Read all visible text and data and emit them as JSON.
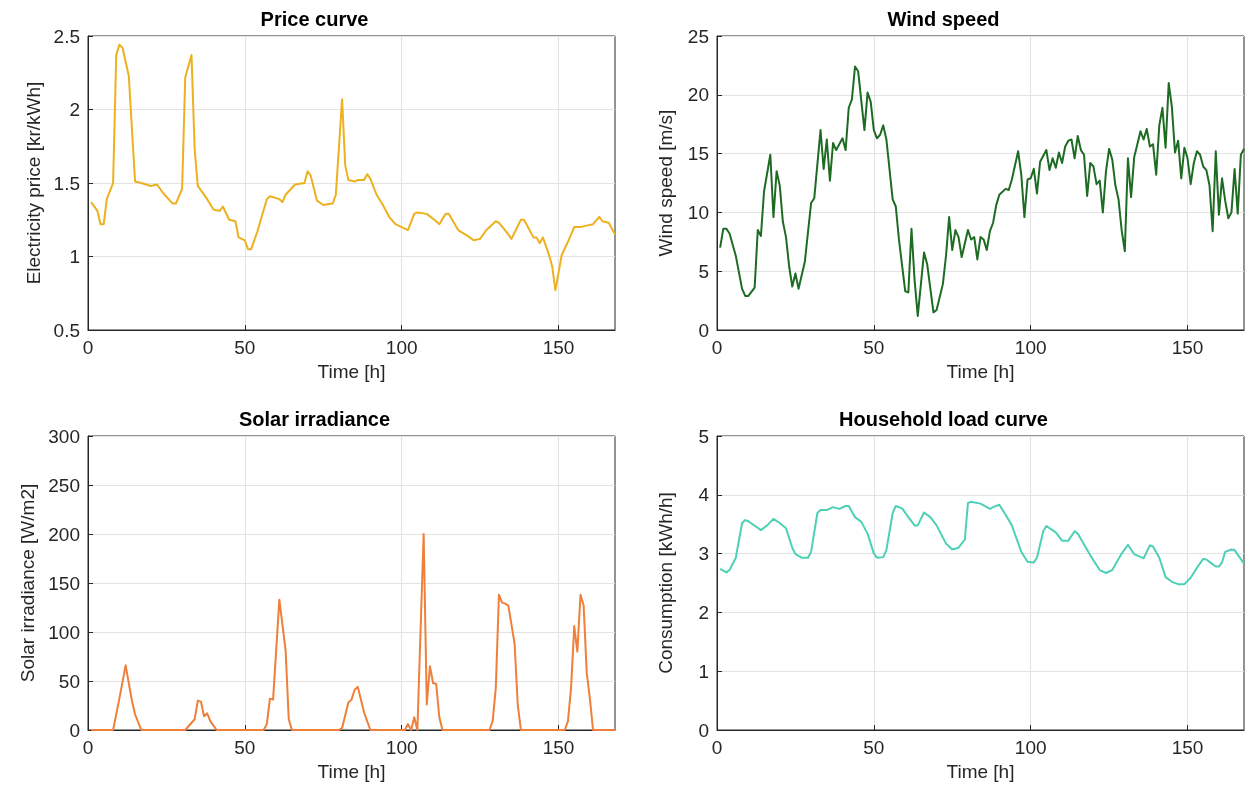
{
  "chart_data": [
    {
      "type": "line",
      "title": "Price curve",
      "xlabel": "Time [h]",
      "ylabel": "Electricity price [kr/kWh]",
      "color": "#edb120",
      "grid": true,
      "xlim": [
        0,
        168
      ],
      "xticks": [
        0,
        50,
        100,
        150
      ],
      "ylim": [
        0.5,
        2.5
      ],
      "yticks": [
        0.5,
        1,
        1.5,
        2,
        2.5
      ],
      "x": [
        1,
        3,
        4,
        5,
        6,
        8,
        9,
        10,
        11,
        13,
        15,
        17,
        20,
        22,
        24,
        27,
        28,
        30,
        31,
        33,
        34,
        35,
        38,
        40,
        42,
        43,
        45,
        47,
        48,
        50,
        51,
        52,
        54,
        57,
        58,
        61,
        62,
        63,
        66,
        69,
        70,
        71,
        73,
        75,
        78,
        79,
        81,
        82,
        83,
        85,
        86,
        88,
        89,
        90,
        92,
        94,
        96,
        98,
        100,
        102,
        104,
        105,
        108,
        111,
        112,
        114,
        115,
        118,
        121,
        123,
        125,
        127,
        130,
        131,
        134,
        135,
        138,
        139,
        142,
        143,
        144,
        145,
        147,
        148,
        149,
        151,
        153,
        155,
        157,
        159,
        161,
        163,
        164,
        166,
        168
      ],
      "values": [
        1.37,
        1.31,
        1.22,
        1.22,
        1.39,
        1.5,
        2.37,
        2.44,
        2.42,
        2.23,
        1.51,
        1.5,
        1.48,
        1.49,
        1.43,
        1.36,
        1.36,
        1.46,
        2.22,
        2.37,
        1.73,
        1.48,
        1.39,
        1.32,
        1.31,
        1.34,
        1.25,
        1.24,
        1.13,
        1.11,
        1.05,
        1.05,
        1.17,
        1.39,
        1.41,
        1.39,
        1.37,
        1.42,
        1.49,
        1.5,
        1.58,
        1.55,
        1.38,
        1.35,
        1.36,
        1.42,
        2.07,
        1.62,
        1.52,
        1.51,
        1.52,
        1.52,
        1.56,
        1.53,
        1.42,
        1.35,
        1.27,
        1.22,
        1.2,
        1.18,
        1.29,
        1.3,
        1.29,
        1.24,
        1.22,
        1.29,
        1.29,
        1.18,
        1.14,
        1.11,
        1.12,
        1.18,
        1.24,
        1.23,
        1.15,
        1.12,
        1.25,
        1.25,
        1.13,
        1.13,
        1.09,
        1.13,
        1.01,
        0.93,
        0.77,
        1.01,
        1.1,
        1.2,
        1.2,
        1.21,
        1.22,
        1.27,
        1.24,
        1.23,
        1.15
      ]
    },
    {
      "type": "line",
      "title": "Wind speed",
      "xlabel": "Time [h]",
      "ylabel": "Wind speed [m/s]",
      "color": "#1e6b24",
      "grid": true,
      "xlim": [
        0,
        168
      ],
      "xticks": [
        0,
        50,
        100,
        150
      ],
      "ylim": [
        0,
        25
      ],
      "yticks": [
        0,
        5,
        10,
        15,
        20,
        25
      ],
      "x": [
        1,
        2,
        3,
        4,
        6,
        8,
        9,
        10,
        12,
        13,
        14,
        15,
        17,
        18,
        19,
        20,
        21,
        22,
        23,
        24,
        25,
        26,
        28,
        30,
        31,
        33,
        34,
        35,
        36,
        37,
        38,
        40,
        41,
        42,
        43,
        44,
        45,
        47,
        48,
        49,
        50,
        51,
        52,
        53,
        54,
        56,
        57,
        58,
        60,
        61,
        62,
        63,
        64,
        66,
        67,
        69,
        70,
        72,
        73,
        74,
        75,
        76,
        77,
        78,
        80,
        81,
        82,
        83,
        84,
        85,
        86,
        87,
        88,
        89,
        90,
        92,
        93,
        94,
        96,
        97,
        98,
        99,
        100,
        101,
        102,
        103,
        105,
        106,
        107,
        108,
        109,
        110,
        111,
        112,
        113,
        114,
        115,
        116,
        117,
        118,
        119,
        120,
        121,
        122,
        123,
        124,
        125,
        126,
        127,
        128,
        129,
        130,
        131,
        132,
        133,
        134,
        135,
        136,
        137,
        138,
        139,
        140,
        141,
        142,
        143,
        144,
        145,
        146,
        147,
        148,
        149,
        150,
        151,
        152,
        153,
        154,
        155,
        156,
        157,
        158,
        159,
        160,
        161,
        162,
        163,
        164,
        165,
        166,
        167,
        168
      ],
      "values": [
        7.0,
        8.6,
        8.6,
        8.2,
        6.3,
        3.5,
        2.9,
        2.9,
        3.6,
        8.5,
        8.0,
        11.8,
        14.9,
        9.6,
        13.5,
        12.3,
        9.2,
        7.9,
        5.4,
        3.7,
        4.8,
        3.5,
        5.8,
        10.8,
        11.2,
        17.0,
        13.7,
        16.2,
        12.7,
        15.9,
        15.3,
        16.3,
        15.3,
        18.9,
        19.6,
        22.4,
        22.0,
        17.0,
        20.2,
        19.4,
        17.0,
        16.3,
        16.6,
        17.4,
        16.2,
        11.1,
        10.5,
        7.7,
        3.3,
        3.2,
        8.6,
        4.2,
        1.2,
        6.6,
        5.6,
        1.5,
        1.7,
        3.9,
        6.3,
        9.6,
        6.8,
        8.5,
        7.9,
        6.2,
        8.5,
        7.7,
        7.9,
        6.0,
        7.9,
        7.7,
        6.8,
        8.4,
        9.1,
        10.6,
        11.5,
        12.0,
        11.9,
        12.8,
        15.2,
        13.2,
        9.6,
        12.8,
        12.9,
        13.7,
        11.6,
        14.3,
        15.3,
        13.6,
        14.6,
        13.8,
        15.1,
        14.2,
        15.6,
        16.1,
        16.2,
        14.6,
        16.5,
        15.3,
        14.9,
        11.4,
        14.2,
        13.9,
        12.4,
        12.7,
        10.0,
        13.5,
        15.4,
        14.5,
        12.3,
        11.1,
        8.5,
        6.7,
        14.6,
        11.3,
        14.7,
        15.8,
        16.9,
        16.2,
        17.1,
        15.6,
        15.8,
        13.2,
        17.4,
        18.9,
        15.5,
        21.0,
        19.0,
        15.1,
        16.1,
        12.9,
        15.5,
        14.6,
        12.4,
        14.2,
        15.2,
        14.9,
        13.9,
        13.6,
        12.3,
        8.4,
        15.2,
        9.8,
        12.9,
        11.0,
        9.5,
        10.0,
        13.7,
        9.9,
        14.9,
        15.4
      ]
    },
    {
      "type": "line",
      "title": "Solar irradiance",
      "xlabel": "Time [h]",
      "ylabel": "Solar irradiance [W/m2]",
      "color": "#ef7f3a",
      "grid": true,
      "xlim": [
        0,
        168
      ],
      "xticks": [
        0,
        50,
        100,
        150
      ],
      "ylim": [
        0,
        300
      ],
      "yticks": [
        0,
        50,
        100,
        150,
        200,
        250,
        300
      ],
      "x": [
        1,
        8,
        10,
        12,
        14,
        15,
        17,
        31,
        34,
        35,
        36,
        37,
        38,
        39,
        41,
        56,
        57,
        58,
        59,
        61,
        63,
        64,
        65,
        80,
        81,
        83,
        84,
        85,
        86,
        88,
        90,
        101,
        102,
        103,
        104,
        105,
        107,
        108,
        109,
        110,
        111,
        112,
        113,
        128,
        129,
        130,
        131,
        132,
        133,
        134,
        136,
        137,
        138,
        152,
        153,
        154,
        155,
        156,
        157,
        158,
        159,
        160,
        161,
        168
      ],
      "values": [
        0,
        0,
        32,
        66,
        30,
        16,
        0,
        0,
        11,
        30,
        29,
        14,
        17,
        9,
        0,
        0,
        6,
        32,
        31,
        133,
        81,
        11,
        0,
        0,
        2,
        28,
        31,
        41,
        44,
        18,
        0,
        0,
        6,
        0,
        13,
        0,
        200,
        26,
        65,
        48,
        47,
        13,
        0,
        0,
        9,
        43,
        138,
        130,
        129,
        127,
        88,
        26,
        0,
        0,
        9,
        43,
        106,
        80,
        138,
        127,
        58,
        32,
        0,
        0
      ]
    },
    {
      "type": "line",
      "title": "Household load curve",
      "xlabel": "Time [h]",
      "ylabel": "Consumption [kWh/h]",
      "color": "#4dd0b6",
      "grid": true,
      "xlim": [
        0,
        168
      ],
      "xticks": [
        0,
        50,
        100,
        150
      ],
      "ylim": [
        0,
        5
      ],
      "yticks": [
        0,
        1,
        2,
        3,
        4,
        5
      ],
      "x": [
        1,
        3,
        4,
        6,
        8,
        9,
        10,
        14,
        16,
        18,
        20,
        22,
        24,
        25,
        27,
        29,
        30,
        32,
        33,
        35,
        37,
        39,
        41,
        42,
        44,
        46,
        48,
        50,
        51,
        53,
        54,
        56,
        57,
        59,
        61,
        63,
        64,
        66,
        68,
        70,
        73,
        75,
        77,
        79,
        80,
        81,
        84,
        87,
        88,
        90,
        92,
        94,
        97,
        99,
        101,
        102,
        104,
        105,
        108,
        110,
        112,
        114,
        115,
        119,
        122,
        124,
        126,
        129,
        131,
        133,
        136,
        138,
        139,
        141,
        143,
        145,
        147,
        149,
        151,
        153,
        155,
        156,
        157,
        159,
        160,
        161,
        162,
        164,
        165,
        168
      ],
      "values": [
        2.74,
        2.68,
        2.72,
        2.93,
        3.52,
        3.57,
        3.55,
        3.4,
        3.48,
        3.59,
        3.52,
        3.43,
        3.1,
        2.99,
        2.93,
        2.93,
        3.03,
        3.69,
        3.74,
        3.74,
        3.79,
        3.76,
        3.81,
        3.81,
        3.62,
        3.54,
        3.34,
        3.0,
        2.93,
        2.94,
        3.06,
        3.69,
        3.81,
        3.77,
        3.62,
        3.48,
        3.48,
        3.7,
        3.62,
        3.48,
        3.17,
        3.07,
        3.1,
        3.24,
        3.86,
        3.88,
        3.85,
        3.76,
        3.79,
        3.83,
        3.66,
        3.48,
        3.03,
        2.86,
        2.85,
        2.93,
        3.38,
        3.47,
        3.36,
        3.22,
        3.22,
        3.38,
        3.34,
        2.97,
        2.72,
        2.67,
        2.72,
        3.0,
        3.15,
        2.99,
        2.92,
        3.14,
        3.12,
        2.93,
        2.6,
        2.52,
        2.48,
        2.48,
        2.59,
        2.76,
        2.91,
        2.9,
        2.86,
        2.78,
        2.78,
        2.85,
        3.03,
        3.07,
        3.06,
        2.83
      ]
    }
  ]
}
